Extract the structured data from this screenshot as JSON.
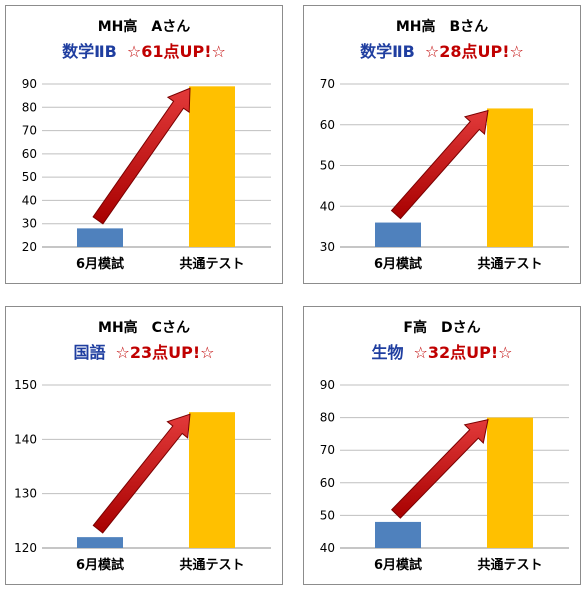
{
  "charts": [
    {
      "title": "MH高　Aさん",
      "subject": "数学ⅡB",
      "gain": "☆61点UP!☆"
    },
    {
      "title": "MH高　Bさん",
      "subject": "数学ⅡB",
      "gain": "☆28点UP!☆"
    },
    {
      "title": "MH高　Cさん",
      "subject": "国語",
      "gain": "☆23点UP!☆"
    },
    {
      "title": "F高　Dさん",
      "subject": "生物",
      "gain": "☆32点UP!☆"
    }
  ],
  "colors": {
    "bar1": "#4f81bd",
    "bar2": "#ffc000",
    "arrow": "#c00000",
    "subject_text": "#1f3ea0",
    "gain_text": "#c00000"
  },
  "chart_data": [
    {
      "type": "bar",
      "categories": [
        "6月模試",
        "共通テスト"
      ],
      "values": [
        28,
        89
      ],
      "ylim": [
        20,
        90
      ],
      "yticks": [
        20,
        30,
        40,
        50,
        60,
        70,
        80,
        90
      ],
      "grid": true
    },
    {
      "type": "bar",
      "categories": [
        "6月模試",
        "共通テスト"
      ],
      "values": [
        36,
        64
      ],
      "ylim": [
        30,
        70
      ],
      "yticks": [
        30,
        40,
        50,
        60,
        70
      ],
      "grid": true
    },
    {
      "type": "bar",
      "categories": [
        "6月模試",
        "共通テスト"
      ],
      "values": [
        122,
        145
      ],
      "ylim": [
        120,
        150
      ],
      "yticks": [
        120,
        130,
        140,
        150
      ],
      "grid": true
    },
    {
      "type": "bar",
      "categories": [
        "6月模試",
        "共通テスト"
      ],
      "values": [
        48,
        80
      ],
      "ylim": [
        40,
        90
      ],
      "yticks": [
        40,
        50,
        60,
        70,
        80,
        90
      ],
      "grid": true
    }
  ]
}
